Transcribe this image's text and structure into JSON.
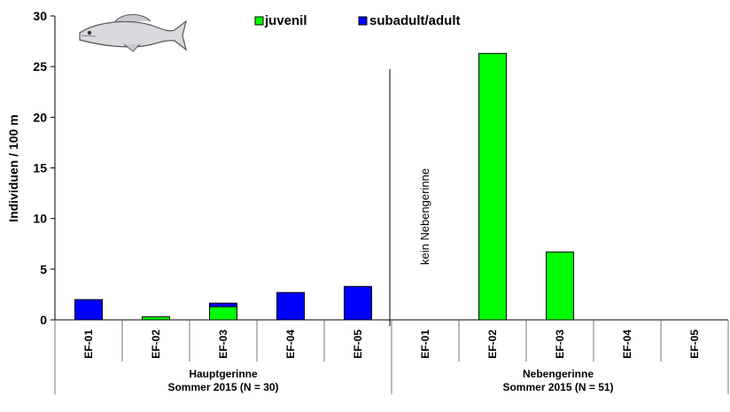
{
  "chart_data": {
    "type": "bar",
    "stacked": true,
    "ylabel": "Individuen / 100 m",
    "ylim": [
      0,
      30
    ],
    "yticks": [
      0,
      5,
      10,
      15,
      20,
      25,
      30
    ],
    "categories": [
      "EF-01",
      "EF-02",
      "EF-03",
      "EF-04",
      "EF-05",
      "EF-01",
      "EF-02",
      "EF-03",
      "EF-04",
      "EF-05"
    ],
    "series": [
      {
        "name": "juvenil",
        "color": "#00ff00",
        "values": [
          0,
          0.3,
          1.3,
          0,
          0,
          0,
          26.3,
          6.7,
          0,
          0
        ]
      },
      {
        "name": "subadult/adult",
        "color": "#0000ff",
        "values": [
          2.0,
          0,
          0.35,
          2.7,
          3.3,
          0,
          0,
          0,
          0,
          0
        ]
      }
    ],
    "groups": [
      {
        "line1": "Hauptgerinne",
        "line2": "Sommer 2015 (N = 30)"
      },
      {
        "line1": "Nebengerinne",
        "line2": "Sommer 2015 (N = 51)"
      }
    ],
    "annotation": "kein Nebengerinne",
    "legend": [
      "juvenil",
      "subadult/adult"
    ]
  }
}
